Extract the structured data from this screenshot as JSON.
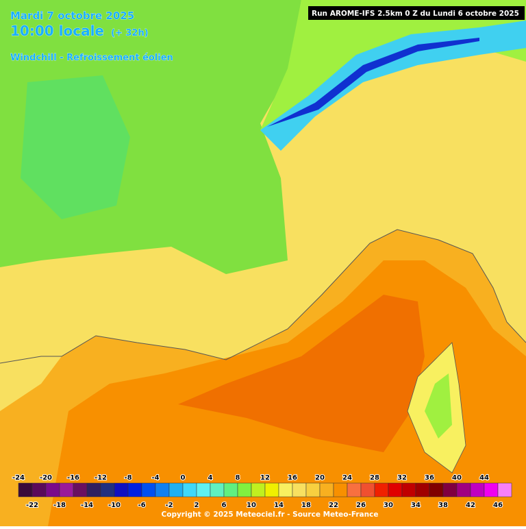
{
  "header": {
    "date": "Mardi 7 octobre 2025",
    "time": "10:00 locale",
    "lead": "(+ 32h)",
    "parameter": "Windchill - Refroissement éolien",
    "run": "Run AROME-IFS 2.5km 0 Z du Lundi 6 octobre 2025"
  },
  "legend": {
    "ticks_top": [
      "-24",
      "-20",
      "-16",
      "-12",
      "-8",
      "-4",
      "0",
      "4",
      "8",
      "12",
      "16",
      "20",
      "24",
      "28",
      "32",
      "36",
      "40",
      "44"
    ],
    "ticks_bottom": [
      "-22",
      "-18",
      "-14",
      "-10",
      "-6",
      "-2",
      "2",
      "6",
      "10",
      "14",
      "18",
      "22",
      "26",
      "30",
      "34",
      "38",
      "42",
      "46"
    ],
    "colors": [
      "#3a0a3a",
      "#5a0a5a",
      "#7a0a8a",
      "#9a1a9a",
      "#6a1060",
      "#302060",
      "#203080",
      "#1010c0",
      "#0020e0",
      "#0050f0",
      "#1080f0",
      "#20b0f0",
      "#40d8f8",
      "#60f0f0",
      "#60f0c0",
      "#60f080",
      "#80f040",
      "#c0f020",
      "#f0f000",
      "#f8f060",
      "#f8e060",
      "#f8d040",
      "#f8b020",
      "#f89000",
      "#f87040",
      "#f05030",
      "#f02000",
      "#e00000",
      "#c00000",
      "#a00000",
      "#800000",
      "#800040",
      "#a00080",
      "#c000c0",
      "#f000f0",
      "#f880f8"
    ]
  },
  "footer": {
    "copyright": "Copyright © 2025 Meteociel.fr - Source Meteo-France"
  }
}
